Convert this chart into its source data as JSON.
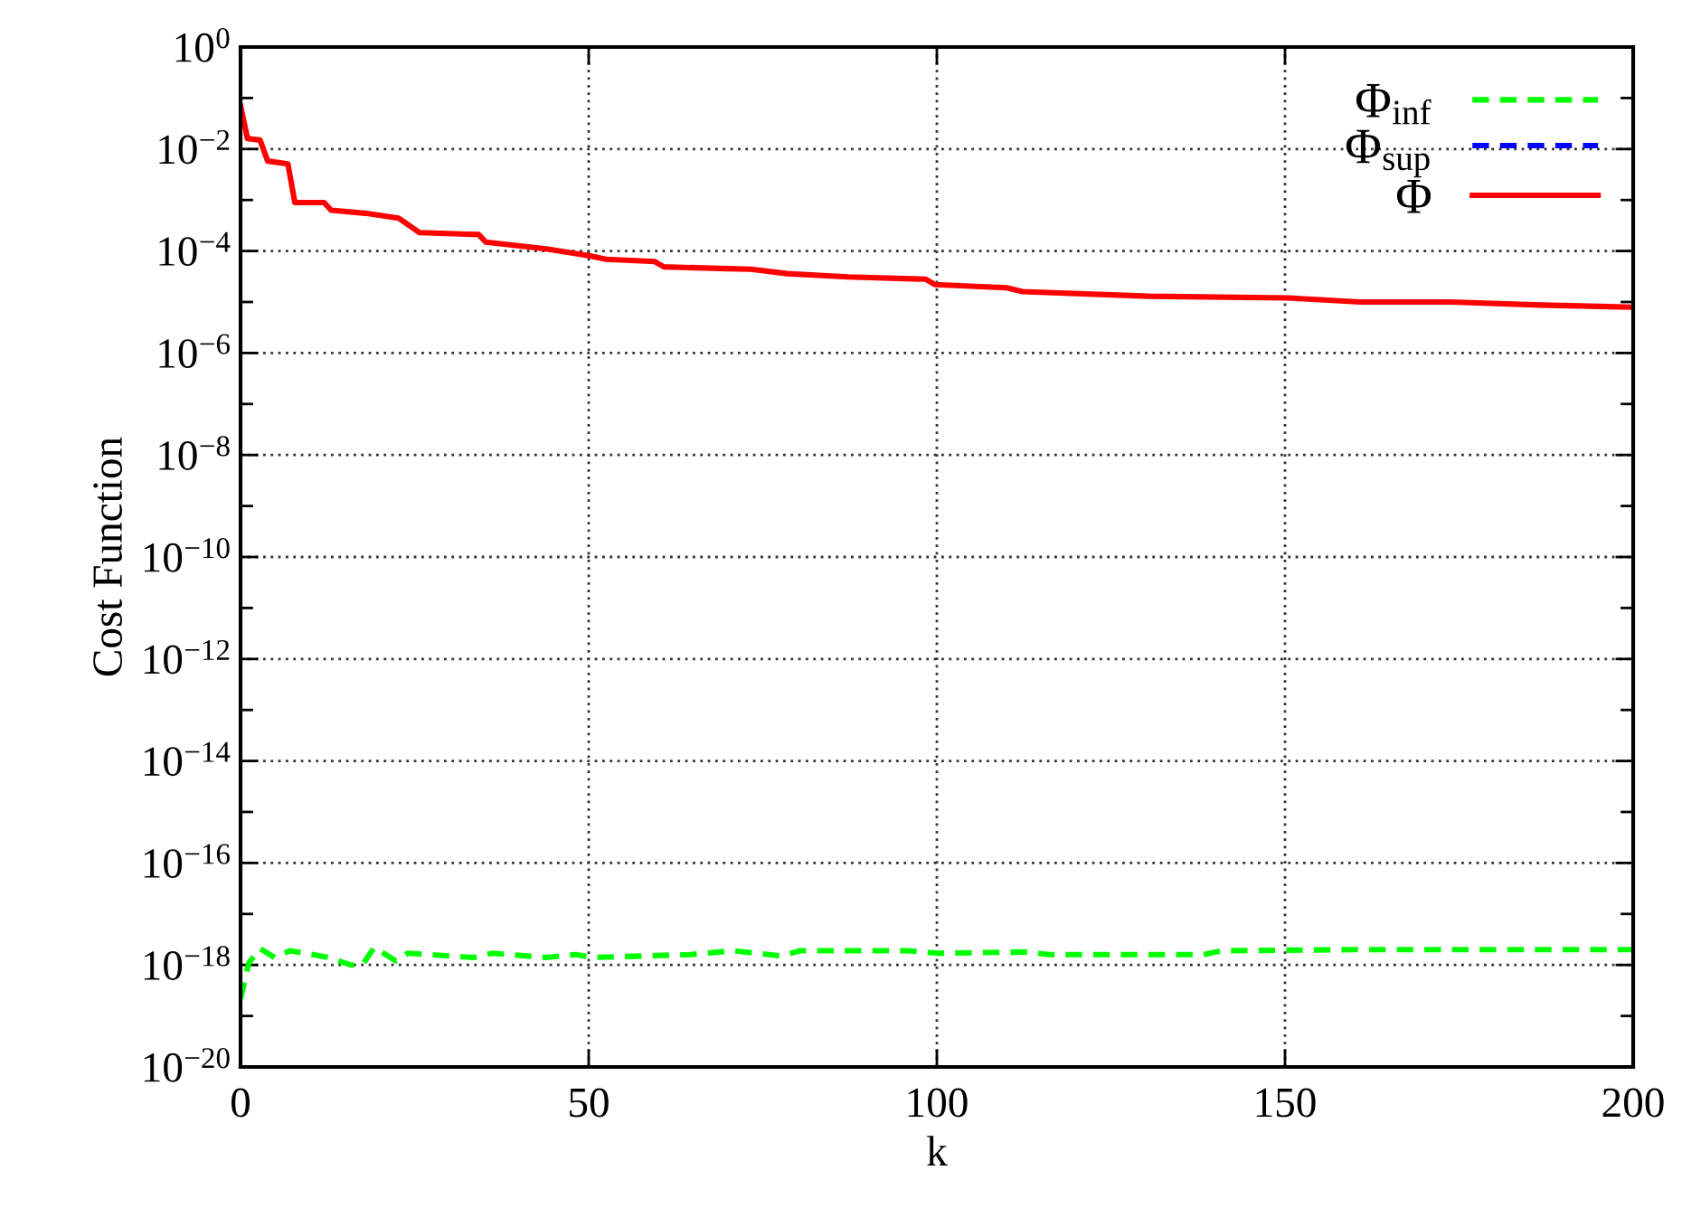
{
  "chart_data": {
    "type": "line",
    "xlabel": "k",
    "ylabel": "Cost Function",
    "log": "y",
    "grid": true,
    "legend": "top right",
    "xlim": [
      0,
      200
    ],
    "xticks": [
      0,
      50,
      100,
      150,
      200
    ],
    "ylim": [
      1e-20,
      1
    ],
    "yticks": [
      {
        "value": 1,
        "label": "10$^{0}$"
      },
      {
        "value": 0.1,
        "label": null
      },
      {
        "value": 0.01,
        "label": "10$^{−2}$"
      },
      {
        "value": 0.001,
        "label": null
      },
      {
        "value": 0.0001,
        "label": "10$^{−4}$"
      },
      {
        "value": 1e-05,
        "label": null
      },
      {
        "value": 1e-06,
        "label": "10$^{−6}$"
      },
      {
        "value": 1e-07,
        "label": null
      },
      {
        "value": 1e-08,
        "label": "10$^{−8}$"
      },
      {
        "value": 1e-09,
        "label": null
      },
      {
        "value": 1e-10,
        "label": "10$^{−10}$"
      },
      {
        "value": 1e-11,
        "label": null
      },
      {
        "value": 1e-12,
        "label": "10$^{−12}$"
      },
      {
        "value": 1e-13,
        "label": null
      },
      {
        "value": 1e-14,
        "label": "10$^{−14}$"
      },
      {
        "value": 1e-15,
        "label": null
      },
      {
        "value": 1e-16,
        "label": "10$^{−16}$"
      },
      {
        "value": 1e-17,
        "label": null
      },
      {
        "value": 1e-18,
        "label": "10$^{−18}$"
      },
      {
        "value": 1e-19,
        "label": null
      },
      {
        "value": 1e-20,
        "label": "10$^{−20}$"
      }
    ],
    "series": [
      {
        "name": "Φ$_{inf}$",
        "color": "#00ff00",
        "line_style": "dashed",
        "x": [
          0,
          1.2,
          2.8,
          4.9,
          7.1,
          12.7,
          15.8,
          17.5,
          19.2,
          22.3,
          24,
          33.5,
          36.1,
          43.9,
          48.2,
          50.6,
          64.7,
          70.7,
          77.7,
          80.3,
          95.8,
          100.2,
          113.2,
          116,
          138.3,
          140.9,
          160,
          200
        ],
        "values": [
          2.2e-19,
          1.1e-18,
          2.1e-18,
          1.4e-18,
          1.9e-18,
          1.4e-18,
          1e-18,
          1e-18,
          2.2e-18,
          1.2e-18,
          1.7e-18,
          1.4e-18,
          1.7e-18,
          1.4e-18,
          1.6e-18,
          1.4e-18,
          1.6e-18,
          1.9e-18,
          1.5e-18,
          1.9e-18,
          1.9e-18,
          1.7e-18,
          1.8e-18,
          1.6e-18,
          1.6e-18,
          1.9e-18,
          2e-18,
          2e-18
        ]
      },
      {
        "name": "Φ$_{sup}$",
        "color": "#0000ff",
        "line_style": "dashed"
      },
      {
        "name": "Φ",
        "color": "#ff0000",
        "line_style": "solid",
        "x": [
          0,
          1,
          2.8,
          3.9,
          6.8,
          7.8,
          12,
          13,
          17.9,
          22.7,
          25.7,
          34.2,
          35.2,
          43.9,
          50,
          52.5,
          59.5,
          60.8,
          69.9,
          73.3,
          78.5,
          87.2,
          98.4,
          99.7,
          110,
          112.3,
          130.5,
          150.4,
          160.8,
          173.8,
          186.8,
          200
        ],
        "values": [
          0.071,
          0.016,
          0.015,
          0.0058,
          0.0051,
          0.00089,
          0.00089,
          0.00063,
          0.00055,
          0.00044,
          0.00023,
          0.00021,
          0.00015,
          0.00011,
          8.1e-05,
          6.9e-05,
          6.2e-05,
          4.9e-05,
          4.5e-05,
          4.4e-05,
          3.6e-05,
          3.1e-05,
          2.8e-05,
          2.2e-05,
          1.9e-05,
          1.6e-05,
          1.3e-05,
          1.2e-05,
          1e-05,
          1e-05,
          8.7e-06,
          7.9e-06
        ]
      }
    ]
  }
}
